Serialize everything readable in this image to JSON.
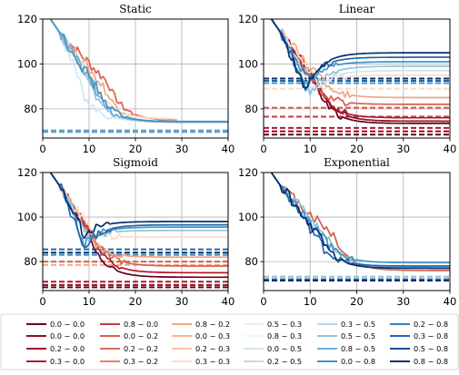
{
  "chart_data": {
    "type": "line",
    "grid": true,
    "legend_placement": "bottom",
    "xlim": [
      0,
      40
    ],
    "ylim": [
      67,
      120
    ],
    "xticks": [
      0,
      10,
      20,
      30,
      40
    ],
    "yticks": [
      80,
      100,
      120
    ],
    "palette": {
      "reds": [
        "#67001f",
        "#8e0d25",
        "#b2182b",
        "#c53e3d",
        "#d6604d",
        "#e58268",
        "#f4a582",
        "#f8c4a9",
        "#fddbc7",
        "#fbe8dd"
      ],
      "blues": [
        "#f2f6fa",
        "#d1e5f0",
        "#b4d6e8",
        "#92c5de",
        "#6fb0d4",
        "#4393c3",
        "#3d7cb8",
        "#2166ac",
        "#1a4f8d",
        "#08306b"
      ]
    },
    "legend": [
      "0.0 − 0.0",
      "0.0 − 0.0",
      "0.2 − 0.0",
      "0.3 − 0.0",
      "0.8 − 0.0",
      "0.0 − 0.2",
      "0.2 − 0.2",
      "0.3 − 0.2",
      "0.8 − 0.2",
      "0.0 − 0.3",
      "0.2 − 0.3",
      "0.3 − 0.3",
      "0.5 − 0.3",
      "0.8 − 0.3",
      "0.0 − 0.5",
      "0.2 − 0.5",
      "0.3 − 0.5",
      "0.5 − 0.5",
      "0.8 − 0.5",
      "0.0 − 0.8",
      "0.2 − 0.8",
      "0.3 − 0.8",
      "0.5 − 0.8",
      "0.8 − 0.8"
    ],
    "panels": [
      {
        "title": "Static",
        "series": [
          {
            "color": "#d6604d",
            "drop": 14,
            "final": 74.8,
            "x_end": 29
          },
          {
            "color": "#f4a582",
            "drop": 13,
            "final": 75.2,
            "x_end": 28
          },
          {
            "color": "#fddbc7",
            "drop": 12,
            "final": 75.6,
            "x_end": 27
          },
          {
            "color": "#d1e5f0",
            "drop": 9,
            "final": 74.5,
            "x_end": 40
          },
          {
            "color": "#92c5de",
            "drop": 10,
            "final": 74.2,
            "x_end": 40
          },
          {
            "color": "#6fb0d4",
            "drop": 11,
            "final": 74.0,
            "x_end": 40
          },
          {
            "color": "#4393c3",
            "drop": 12,
            "final": 74.3,
            "x_end": 40
          }
        ],
        "dashed": [
          {
            "color": "#b4d6e8",
            "y": 69.5
          },
          {
            "color": "#92c5de",
            "y": 70.5
          },
          {
            "color": "#4393c3",
            "y": 70.0
          }
        ]
      },
      {
        "title": "Linear",
        "series": [
          {
            "color": "#67001f",
            "drop": 11,
            "final": 73.5,
            "x_end": 40
          },
          {
            "color": "#8e0d25",
            "drop": 12,
            "final": 74.5,
            "x_end": 40
          },
          {
            "color": "#b2182b",
            "drop": 12,
            "final": 76.0,
            "x_end": 40
          },
          {
            "color": "#d6604d",
            "drop": 13,
            "final": 82.0,
            "x_end": 40
          },
          {
            "color": "#f4a582",
            "drop": 13,
            "final": 85.0,
            "x_end": 40
          },
          {
            "color": "#fddbc7",
            "drop": 12,
            "final": 95.0,
            "x_end": 40
          },
          {
            "color": "#d1e5f0",
            "drop": 11,
            "final": 97.0,
            "x_end": 40
          },
          {
            "color": "#92c5de",
            "drop": 10,
            "final": 99.0,
            "x_end": 40
          },
          {
            "color": "#4393c3",
            "drop": 10,
            "final": 101.0,
            "x_end": 40
          },
          {
            "color": "#2166ac",
            "drop": 9,
            "final": 103.0,
            "x_end": 40
          },
          {
            "color": "#08306b",
            "drop": 9,
            "final": 105.0,
            "x_end": 40
          }
        ],
        "dashed": [
          {
            "color": "#08306b",
            "y": 93.5
          },
          {
            "color": "#2166ac",
            "y": 92.5
          },
          {
            "color": "#4393c3",
            "y": 91.5
          },
          {
            "color": "#fddbc7",
            "y": 89.0
          },
          {
            "color": "#d6604d",
            "y": 80.5
          },
          {
            "color": "#c53e3d",
            "y": 76.5
          },
          {
            "color": "#b2182b",
            "y": 71.5
          },
          {
            "color": "#8e0d25",
            "y": 70.0
          },
          {
            "color": "#67001f",
            "y": 68.5
          }
        ]
      },
      {
        "title": "Sigmoid",
        "series": [
          {
            "color": "#67001f",
            "drop": 10,
            "final": 73.0,
            "x_end": 40
          },
          {
            "color": "#b2182b",
            "drop": 11,
            "final": 75.0,
            "x_end": 40
          },
          {
            "color": "#d6604d",
            "drop": 12,
            "final": 78.0,
            "x_end": 40
          },
          {
            "color": "#f4a582",
            "drop": 12,
            "final": 82.0,
            "x_end": 40
          },
          {
            "color": "#fddbc7",
            "drop": 11,
            "final": 91.0,
            "x_end": 40
          },
          {
            "color": "#92c5de",
            "drop": 10,
            "final": 94.0,
            "x_end": 40
          },
          {
            "color": "#4393c3",
            "drop": 9,
            "final": 95.5,
            "x_end": 40
          },
          {
            "color": "#2166ac",
            "drop": 9,
            "final": 96.5,
            "x_end": 40
          },
          {
            "color": "#08306b",
            "drop": 9,
            "final": 98.0,
            "x_end": 40
          }
        ],
        "dashed": [
          {
            "color": "#2166ac",
            "y": 85.5
          },
          {
            "color": "#08306b",
            "y": 84.0
          },
          {
            "color": "#4393c3",
            "y": 83.0
          },
          {
            "color": "#d6604d",
            "y": 80.0
          },
          {
            "color": "#f4a582",
            "y": 78.5
          },
          {
            "color": "#b2182b",
            "y": 71.0
          },
          {
            "color": "#8e0d25",
            "y": 69.5
          },
          {
            "color": "#67001f",
            "y": 68.5
          }
        ]
      },
      {
        "title": "Exponential",
        "series": [
          {
            "color": "#d6604d",
            "drop": 15,
            "final": 76.0,
            "x_end": 40
          },
          {
            "color": "#92c5de",
            "drop": 14,
            "final": 77.5,
            "x_end": 40
          },
          {
            "color": "#4393c3",
            "drop": 14,
            "final": 79.5,
            "x_end": 40
          },
          {
            "color": "#2166ac",
            "drop": 13,
            "final": 78.0,
            "x_end": 40
          },
          {
            "color": "#08306b",
            "drop": 12,
            "final": 77.0,
            "x_end": 40
          }
        ],
        "dashed": [
          {
            "color": "#d1e5f0",
            "y": 73.5
          },
          {
            "color": "#92c5de",
            "y": 73.0
          },
          {
            "color": "#2166ac",
            "y": 72.0
          },
          {
            "color": "#08306b",
            "y": 71.5
          }
        ]
      }
    ]
  }
}
